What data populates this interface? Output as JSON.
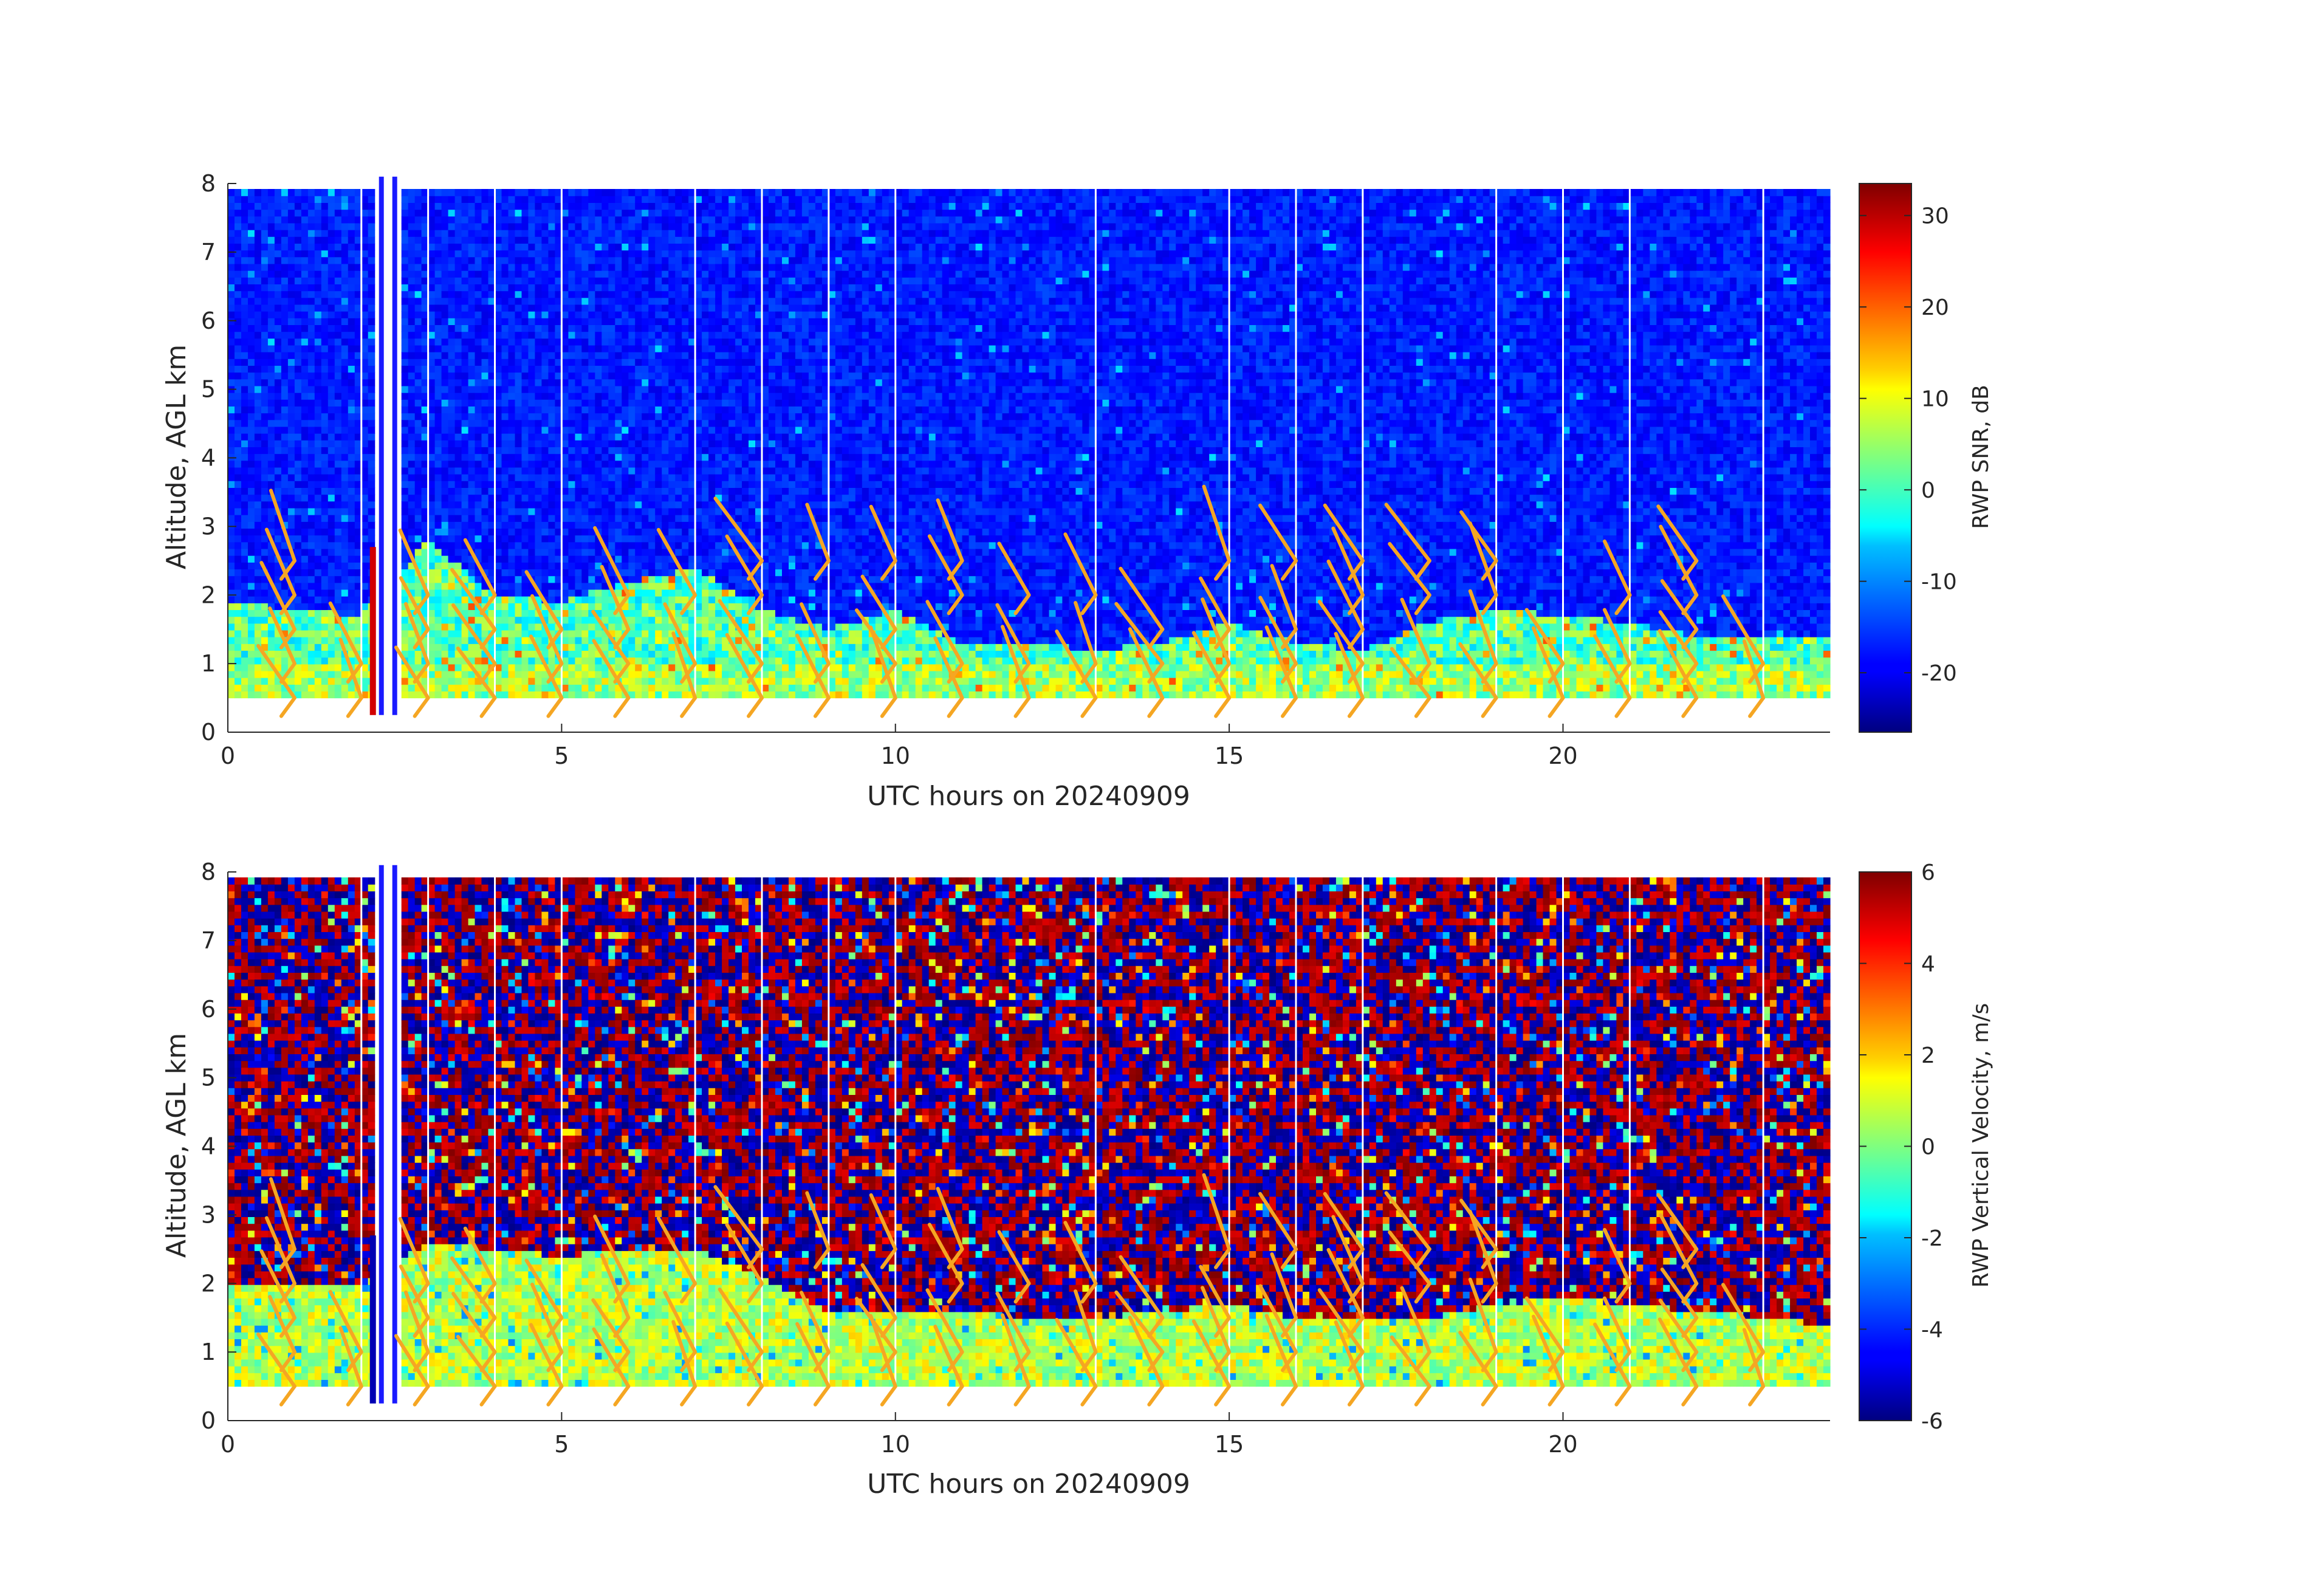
{
  "chart_data": [
    {
      "type": "heatmap",
      "xlabel": "UTC hours on 20240909",
      "ylabel": "Altitude, AGL km",
      "xlim": [
        0,
        24
      ],
      "ylim": [
        0,
        8
      ],
      "xticks": [
        "0",
        "5",
        "10",
        "15",
        "20"
      ],
      "yticks": [
        "0",
        "1",
        "2",
        "3",
        "4",
        "5",
        "6",
        "7",
        "8"
      ],
      "colorbar": {
        "label": "RWP SNR, dB",
        "range": [
          -26.5,
          33.5
        ],
        "ticks": [
          "-20",
          "-10",
          "0",
          "10",
          "20",
          "30"
        ],
        "colormap": "jet"
      },
      "field": "snr",
      "gap_hours": [
        2.0,
        3.0,
        4.0,
        5.0,
        7.0,
        8.0,
        9.0,
        10.0,
        13.0,
        15.0,
        16.0,
        17.0,
        19.0,
        20.0,
        21.0,
        23.0
      ],
      "data_gap_band_hours": [
        2.2,
        2.6
      ],
      "boundary_layer_top_km": {
        "hours": [
          0,
          1,
          2,
          3,
          4,
          5,
          6,
          7,
          8,
          9,
          10,
          11,
          12,
          13,
          14,
          15,
          16,
          17,
          18,
          19,
          20,
          21,
          22,
          23,
          24
        ],
        "values": [
          1.9,
          1.8,
          1.7,
          2.8,
          2.0,
          1.9,
          2.2,
          2.4,
          1.8,
          1.5,
          1.8,
          1.3,
          1.3,
          1.2,
          1.3,
          1.6,
          1.3,
          1.2,
          1.6,
          1.8,
          1.7,
          1.6,
          1.4,
          1.4,
          1.4
        ]
      },
      "lowest_gate_km": 0.5
    },
    {
      "type": "heatmap",
      "xlabel": "UTC hours on 20240909",
      "ylabel": "Altitude, AGL km",
      "xlim": [
        0,
        24
      ],
      "ylim": [
        0,
        8
      ],
      "xticks": [
        "0",
        "5",
        "10",
        "15",
        "20"
      ],
      "yticks": [
        "0",
        "1",
        "2",
        "3",
        "4",
        "5",
        "6",
        "7",
        "8"
      ],
      "colorbar": {
        "label": "RWP Vertical Velocity, m/s",
        "range": [
          -6,
          6
        ],
        "ticks": [
          "-6",
          "-4",
          "-2",
          "0",
          "2",
          "4",
          "6"
        ],
        "colormap": "jet"
      },
      "field": "vertical_velocity",
      "gap_hours": [
        2.0,
        3.0,
        4.0,
        5.0,
        7.0,
        8.0,
        9.0,
        10.0,
        13.0,
        15.0,
        16.0,
        17.0,
        19.0,
        20.0,
        21.0,
        23.0
      ],
      "data_gap_band_hours": [
        2.2,
        2.6
      ],
      "boundary_layer_top_km": {
        "hours": [
          0,
          2,
          3,
          4,
          5,
          6,
          7,
          8,
          9,
          10,
          11,
          12,
          13,
          14,
          15,
          16,
          17,
          18,
          19,
          20,
          21,
          22,
          23,
          24
        ],
        "values": [
          2.0,
          2.0,
          2.6,
          2.5,
          2.4,
          2.5,
          2.5,
          2.1,
          1.6,
          1.6,
          1.6,
          1.5,
          1.5,
          1.6,
          1.7,
          1.5,
          1.5,
          1.5,
          1.7,
          1.8,
          1.7,
          1.6,
          1.5,
          1.4
        ]
      },
      "lowest_gate_km": 0.5
    }
  ],
  "wind_barbs": {
    "color": "#f5a623",
    "hours": [
      1.0,
      2.0,
      3.0,
      4.0,
      5.0,
      6.0,
      7.0,
      8.0,
      9.0,
      10.0,
      11.0,
      12.0,
      13.0,
      14.0,
      15.0,
      16.0,
      17.0,
      18.0,
      19.0,
      20.0,
      21.0,
      22.0,
      23.0
    ],
    "levels_km": [
      0.5,
      1.0,
      1.5,
      2.0,
      2.5
    ]
  }
}
